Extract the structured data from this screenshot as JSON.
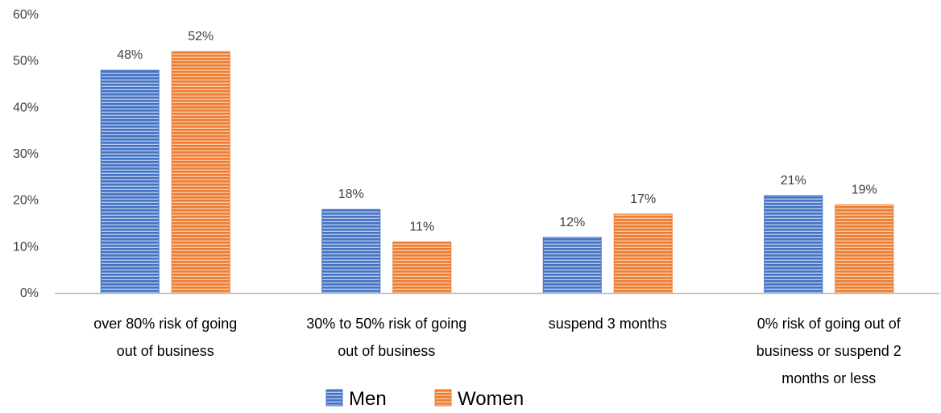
{
  "chart_data": {
    "type": "bar",
    "categories": [
      [
        "over 80% risk of going",
        "out of business"
      ],
      [
        "30% to 50% risk of going",
        "out of business"
      ],
      [
        "suspend 3 months"
      ],
      [
        "0% risk of going out of",
        "business or suspend 2",
        "months or less"
      ]
    ],
    "series": [
      {
        "name": "Men",
        "color": "#4472c4",
        "values": [
          48,
          18,
          12,
          21
        ],
        "labels": [
          "48%",
          "18%",
          "12%",
          "21%"
        ]
      },
      {
        "name": "Women",
        "color": "#ed7d31",
        "values": [
          52,
          11,
          17,
          19
        ],
        "labels": [
          "52%",
          "11%",
          "17%",
          "19%"
        ]
      }
    ],
    "yticks": [
      "0%",
      "10%",
      "20%",
      "30%",
      "40%",
      "50%",
      "60%"
    ],
    "ylim": [
      0,
      60
    ],
    "title": "",
    "xlabel": "",
    "ylabel": "",
    "legend": "bottom",
    "grid": false
  }
}
